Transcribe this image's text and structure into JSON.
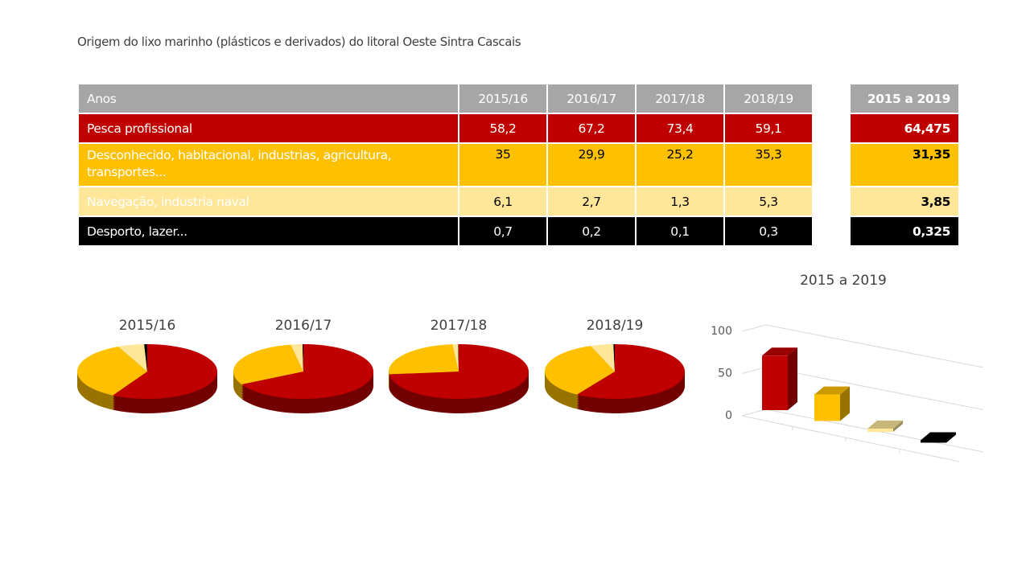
{
  "title": "Origem do lixo marinho (plásticos e derivados) do litoral Oeste Sintra Cascais",
  "table": {
    "header": [
      "Anos",
      "2015/16",
      "2016/17",
      "2017/18",
      "2018/19"
    ],
    "total_header": "2015 a 2019",
    "rows": [
      {
        "label": "Pesca profissional",
        "values": [
          "58,2",
          "67,2",
          "73,4",
          "59,1"
        ],
        "total": "64,475"
      },
      {
        "label": "Desconhecido, habitacional, industrias, agricultura, transportes...",
        "values": [
          "35",
          "29,9",
          "25,2",
          "35,3"
        ],
        "total": "31,35"
      },
      {
        "label": "Navegação, industria naval",
        "values": [
          "6,1",
          "2,7",
          "1,3",
          "5,3"
        ],
        "total": "3,85"
      },
      {
        "label": "Desporto, lazer...",
        "values": [
          "0,7",
          "0,2",
          "0,1",
          "0,3"
        ],
        "total": "0,325"
      }
    ]
  },
  "colors": [
    "#c00000",
    "#ffc000",
    "#ffe699",
    "#000000"
  ],
  "chart_data": [
    {
      "type": "pie",
      "title": "2015/16",
      "categories": [
        "Pesca profissional",
        "Desconhecido, habitacional, industrias, agricultura, transportes...",
        "Navegação, industria naval",
        "Desporto, lazer..."
      ],
      "values": [
        58.2,
        35,
        6.1,
        0.7
      ]
    },
    {
      "type": "pie",
      "title": "2016/17",
      "categories": [
        "Pesca profissional",
        "Desconhecido, habitacional, industrias, agricultura, transportes...",
        "Navegação, industria naval",
        "Desporto, lazer..."
      ],
      "values": [
        67.2,
        29.9,
        2.7,
        0.2
      ]
    },
    {
      "type": "pie",
      "title": "2017/18",
      "categories": [
        "Pesca profissional",
        "Desconhecido, habitacional, industrias, agricultura, transportes...",
        "Navegação, industria naval",
        "Desporto, lazer..."
      ],
      "values": [
        73.4,
        25.2,
        1.3,
        0.1
      ]
    },
    {
      "type": "pie",
      "title": "2018/19",
      "categories": [
        "Pesca profissional",
        "Desconhecido, habitacional, industrias, agricultura, transportes...",
        "Navegação, industria naval",
        "Desporto, lazer..."
      ],
      "values": [
        59.1,
        35.3,
        5.3,
        0.3
      ]
    },
    {
      "type": "bar",
      "title": "2015 a 2019",
      "categories": [
        "Pesca profissional",
        "Desconhecido, habitacional, industrias, agricultura, transportes...",
        "Navegação, industria naval",
        "Desporto, lazer..."
      ],
      "values": [
        64.475,
        31.35,
        3.85,
        0.325
      ],
      "yticks": [
        "0",
        "50",
        "100"
      ],
      "ylim": [
        0,
        100
      ],
      "grid": true
    }
  ]
}
